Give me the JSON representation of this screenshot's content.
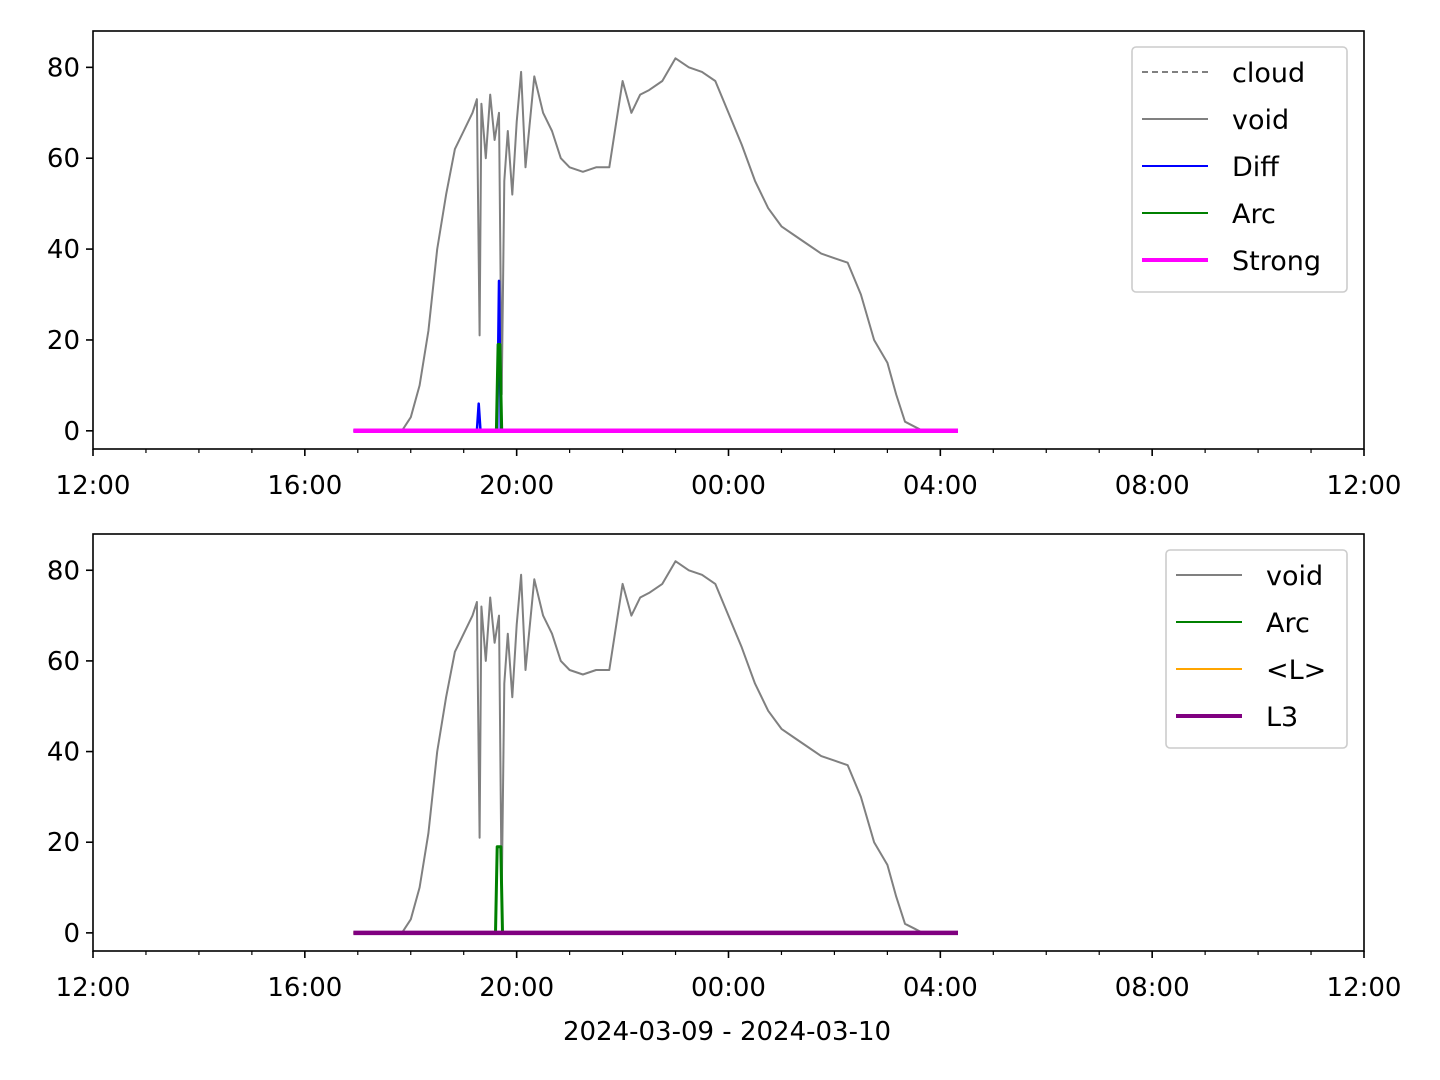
{
  "figure": {
    "xlabel": "2024-03-09 - 2024-03-10"
  },
  "chart_data": [
    {
      "type": "line",
      "xlabel": "",
      "ylabel": "",
      "xlim": [
        "2024-03-09 12:00",
        "2024-03-10 12:00"
      ],
      "ylim": [
        -4,
        88
      ],
      "x_ticks": [
        "12:00",
        "16:00",
        "20:00",
        "00:00",
        "04:00",
        "08:00",
        "12:00"
      ],
      "y_ticks": [
        0,
        20,
        40,
        60,
        80
      ],
      "legend_position": "top-right",
      "legend": [
        "cloud",
        "void",
        "Diff",
        "Arc",
        "Strong"
      ],
      "series": [
        {
          "name": "cloud",
          "color": "#808080",
          "style": "dashed",
          "x": [],
          "y": []
        },
        {
          "name": "void",
          "color": "#808080",
          "style": "solid",
          "x": [
            "2024-03-09 17:50",
            "2024-03-09 18:00",
            "2024-03-09 18:10",
            "2024-03-09 18:20",
            "2024-03-09 18:30",
            "2024-03-09 18:40",
            "2024-03-09 18:50",
            "2024-03-09 19:00",
            "2024-03-09 19:10",
            "2024-03-09 19:15",
            "2024-03-09 19:18",
            "2024-03-09 19:20",
            "2024-03-09 19:25",
            "2024-03-09 19:30",
            "2024-03-09 19:35",
            "2024-03-09 19:40",
            "2024-03-09 19:43",
            "2024-03-09 19:46",
            "2024-03-09 19:50",
            "2024-03-09 19:55",
            "2024-03-09 20:00",
            "2024-03-09 20:05",
            "2024-03-09 20:10",
            "2024-03-09 20:20",
            "2024-03-09 20:30",
            "2024-03-09 20:40",
            "2024-03-09 20:50",
            "2024-03-09 21:00",
            "2024-03-09 21:15",
            "2024-03-09 21:30",
            "2024-03-09 21:45",
            "2024-03-09 22:00",
            "2024-03-09 22:10",
            "2024-03-09 22:20",
            "2024-03-09 22:30",
            "2024-03-09 22:45",
            "2024-03-09 23:00",
            "2024-03-09 23:15",
            "2024-03-09 23:30",
            "2024-03-09 23:45",
            "2024-03-10 00:00",
            "2024-03-10 00:15",
            "2024-03-10 00:30",
            "2024-03-10 00:45",
            "2024-03-10 01:00",
            "2024-03-10 01:15",
            "2024-03-10 01:30",
            "2024-03-10 01:45",
            "2024-03-10 02:00",
            "2024-03-10 02:15",
            "2024-03-10 02:30",
            "2024-03-10 02:45",
            "2024-03-10 03:00",
            "2024-03-10 03:10",
            "2024-03-10 03:20",
            "2024-03-10 03:30",
            "2024-03-10 03:40",
            "2024-03-10 03:45",
            "2024-03-10 03:50"
          ],
          "y": [
            0,
            3,
            10,
            22,
            40,
            52,
            62,
            66,
            70,
            73,
            21,
            72,
            60,
            74,
            64,
            70,
            8,
            55,
            66,
            52,
            68,
            79,
            58,
            78,
            70,
            66,
            60,
            58,
            57,
            58,
            58,
            77,
            70,
            74,
            75,
            77,
            82,
            80,
            79,
            77,
            70,
            63,
            55,
            49,
            45,
            43,
            41,
            39,
            38,
            37,
            30,
            20,
            15,
            8,
            2,
            1,
            0,
            0,
            0
          ]
        },
        {
          "name": "Diff",
          "color": "#0000ff",
          "style": "solid",
          "x": [
            "2024-03-09 16:55",
            "2024-03-09 19:15",
            "2024-03-09 19:17",
            "2024-03-09 19:19",
            "2024-03-09 19:38",
            "2024-03-09 19:40",
            "2024-03-09 19:42",
            "2024-03-09 20:00",
            "2024-03-10 04:20"
          ],
          "y": [
            0,
            0,
            6,
            0,
            0,
            33,
            0,
            0,
            0
          ]
        },
        {
          "name": "Arc",
          "color": "#008000",
          "style": "solid",
          "x": [
            "2024-03-09 16:55",
            "2024-03-09 19:37",
            "2024-03-09 19:39",
            "2024-03-09 19:41",
            "2024-03-09 19:43",
            "2024-03-10 04:20"
          ],
          "y": [
            0,
            0,
            19,
            19,
            0,
            0
          ]
        },
        {
          "name": "Strong",
          "color": "#ff00ff",
          "style": "solid",
          "x": [
            "2024-03-09 16:55",
            "2024-03-10 04:20"
          ],
          "y": [
            0,
            0
          ]
        }
      ]
    },
    {
      "type": "line",
      "xlabel": "2024-03-09 - 2024-03-10",
      "ylabel": "",
      "xlim": [
        "2024-03-09 12:00",
        "2024-03-10 12:00"
      ],
      "ylim": [
        -4,
        88
      ],
      "x_ticks": [
        "12:00",
        "16:00",
        "20:00",
        "00:00",
        "04:00",
        "08:00",
        "12:00"
      ],
      "y_ticks": [
        0,
        20,
        40,
        60,
        80
      ],
      "legend_position": "top-right",
      "legend": [
        "void",
        "Arc",
        "<L>",
        "L3"
      ],
      "series": [
        {
          "name": "void",
          "color": "#808080",
          "style": "solid",
          "same_as": "void"
        },
        {
          "name": "Arc",
          "color": "#008000",
          "style": "solid",
          "x": [
            "2024-03-09 16:55",
            "2024-03-09 19:36",
            "2024-03-09 19:38",
            "2024-03-09 19:42",
            "2024-03-09 19:44",
            "2024-03-10 04:20"
          ],
          "y": [
            0,
            0,
            19,
            19,
            0,
            0
          ]
        },
        {
          "name": "<L>",
          "color": "#ffa500",
          "style": "solid",
          "x": [
            "2024-03-09 16:55",
            "2024-03-10 04:20"
          ],
          "y": [
            0,
            0
          ]
        },
        {
          "name": "L3",
          "color": "#800080",
          "style": "solid",
          "x": [
            "2024-03-09 16:55",
            "2024-03-10 04:20"
          ],
          "y": [
            0,
            0
          ]
        }
      ]
    }
  ]
}
